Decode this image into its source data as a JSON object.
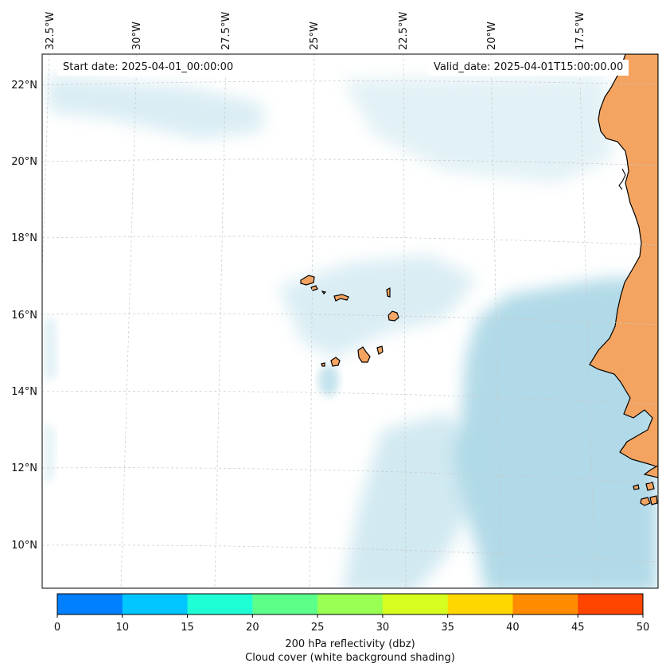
{
  "header": {
    "start_label": "Start date:",
    "start_value": "2025-04-01_00:00:00",
    "valid_label": "Valid_date:",
    "valid_value": "2025-04-01T15:00:00.00"
  },
  "map": {
    "lon_labels": [
      "32.5°W",
      "30°W",
      "27.5°W",
      "25°W",
      "22.5°W",
      "20°W",
      "17.5°W"
    ],
    "lat_labels": [
      "22°N",
      "20°N",
      "18°N",
      "16°N",
      "14°N",
      "12°N",
      "10°N"
    ],
    "colors": {
      "land": "#f4a460",
      "cloud": "#add8e6",
      "coastline": "#000000",
      "gridline": "#c8c8c8"
    }
  },
  "colorbar": {
    "ticks": [
      "0",
      "10",
      "15",
      "20",
      "25",
      "30",
      "35",
      "40",
      "45",
      "50"
    ],
    "colors": [
      "#007fff",
      "#00c5ff",
      "#1fffd6",
      "#5cff8a",
      "#99ff52",
      "#d6ff1f",
      "#ffd700",
      "#ff8c00",
      "#ff4500"
    ],
    "title_line1": "200 hPa reflectivity (dbz)",
    "title_line2": "Cloud cover (white background shading)"
  }
}
